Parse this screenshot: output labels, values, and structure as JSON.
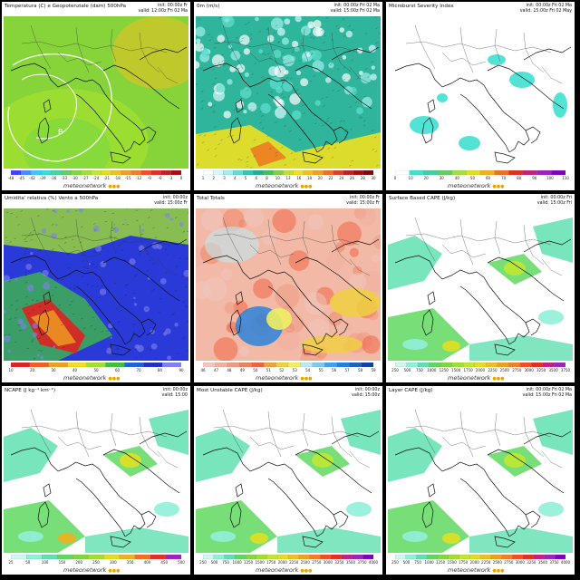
{
  "brand": "meteonetwork",
  "panels": [
    {
      "title": "Temperatura (C) e Geopotenziale (dam) 500hPa",
      "init": "init: 00:00z Fr",
      "valid": "valid: 12:00z Fri 02 Ma",
      "theme": "temp",
      "scale": [
        "-48",
        "-45",
        "-42",
        "-39",
        "-36",
        "-33",
        "-30",
        "-27",
        "-24",
        "-21",
        "-18",
        "-15",
        "-12",
        "-9",
        "-6",
        "-3",
        "0"
      ],
      "colors": [
        "#4040ff",
        "#4a8cff",
        "#38c8ff",
        "#30e0e0",
        "#40d8a0",
        "#60d060",
        "#80d840",
        "#a0e030",
        "#c0e830",
        "#e0e020",
        "#f0c020",
        "#f0a020",
        "#f08020",
        "#f05020",
        "#e03020",
        "#c02020",
        "#a01010"
      ],
      "bg": "#86d43a",
      "marker": "B"
    },
    {
      "title": "0m (m/s)",
      "init": "init: 00:00z Fri 02 Ma",
      "valid": "valid: 15:00z Fri 02 Ma",
      "theme": "wind",
      "scale": [
        "1",
        "2",
        "3",
        "4",
        "5",
        "6",
        "8",
        "10",
        "13",
        "16",
        "18",
        "20",
        "22",
        "24",
        "26",
        "28",
        "30"
      ],
      "colors": [
        "#ffffff",
        "#d8f8ff",
        "#a0f0f0",
        "#60e0d0",
        "#30c8b0",
        "#20b090",
        "#40c060",
        "#80d040",
        "#c0e030",
        "#f0e020",
        "#f0c020",
        "#f0a020",
        "#f07020",
        "#e04020",
        "#c02020",
        "#a01010",
        "#800808"
      ],
      "bg": "#2fb59b"
    },
    {
      "title": "Microburst Severity Index",
      "init": "init: 00:00z Fri 02 Ma",
      "valid": "valid: 15:00z Fri 02 May",
      "theme": "mb",
      "scale": [
        "0",
        "10",
        "20",
        "30",
        "40",
        "50",
        "60",
        "70",
        "80",
        "90",
        "100",
        "110"
      ],
      "colors": [
        "#ffffff",
        "#40e0d0",
        "#40d0a0",
        "#60d060",
        "#a0e040",
        "#e0e020",
        "#f0b020",
        "#f07020",
        "#e03020",
        "#c02080",
        "#a020c0",
        "#8000c0"
      ],
      "bg": "#ffffff"
    },
    {
      "title": "Umidita' relativa (%) Vento a 500hPa",
      "init": "init: 00:00z",
      "valid": "valid: 15:00z Fr",
      "theme": "rh",
      "scale": [
        "10",
        "20",
        "30",
        "40",
        "50",
        "60",
        "70",
        "80",
        "90"
      ],
      "colors": [
        "#e02020",
        "#f06020",
        "#f0a020",
        "#f0e020",
        "#a0e030",
        "#40c040",
        "#2060e0",
        "#2030c0",
        "#8080f0"
      ],
      "bg": "#2a3ad8"
    },
    {
      "title": "Total Totals",
      "init": "init: 00:00z Fr",
      "valid": "valid: 15:00z Fr",
      "theme": "tt",
      "scale": [
        "46",
        "47",
        "48",
        "49",
        "50",
        "51",
        "52",
        "53",
        "54",
        "55",
        "56",
        "57",
        "58",
        "59"
      ],
      "colors": [
        "#f0c8c0",
        "#f0b0a0",
        "#f09880",
        "#f08060",
        "#f06040",
        "#f0a040",
        "#f0d040",
        "#f0f060",
        "#c0e8f0",
        "#80c8f0",
        "#40a0f0",
        "#2080e0",
        "#2060c0",
        "#1040a0"
      ],
      "bg": "#f2b9a6"
    },
    {
      "title": "Surface Based CAPE (J/kg)",
      "init": "init: 00:00z Fri",
      "valid": "valid: 15:00z Fri",
      "theme": "cape",
      "scale": [
        "250",
        "500",
        "750",
        "1000",
        "1250",
        "1500",
        "1750",
        "2000",
        "2250",
        "2500",
        "2750",
        "3000",
        "3250",
        "3500",
        "3750"
      ],
      "colors": [
        "#d0f8f0",
        "#90f0d8",
        "#60e0b0",
        "#60d860",
        "#80d840",
        "#a0e030",
        "#c0e830",
        "#e0e020",
        "#f0c020",
        "#f0a020",
        "#f08020",
        "#f05020",
        "#e03020",
        "#c02080",
        "#a020c0"
      ],
      "bg": "#ffffff"
    },
    {
      "title": "NCAPE (J kg⁻¹ km⁻¹)",
      "init": "init: 00:00z",
      "valid": "valid: 15:00",
      "theme": "ncape",
      "scale": [
        "25",
        "50",
        "100",
        "150",
        "200",
        "250",
        "300",
        "350",
        "400",
        "450",
        "500"
      ],
      "colors": [
        "#d0f8f0",
        "#90f0d8",
        "#60e0b0",
        "#60d860",
        "#80d840",
        "#a0e030",
        "#e0e020",
        "#f0b020",
        "#f07020",
        "#e03020",
        "#a020c0"
      ],
      "bg": "#ffffff"
    },
    {
      "title": "Most Unstable CAPE (J/kg)",
      "init": "init: 00:00z",
      "valid": "valid: 15:00z",
      "theme": "mucape",
      "scale": [
        "250",
        "500",
        "750",
        "1000",
        "1250",
        "1500",
        "1750",
        "2000",
        "2250",
        "2500",
        "2750",
        "3000",
        "3250",
        "3500",
        "3750",
        "4000"
      ],
      "colors": [
        "#d0f8f0",
        "#90f0d8",
        "#60e0b0",
        "#60d860",
        "#80d840",
        "#a0e030",
        "#c0e830",
        "#e0e020",
        "#f0c020",
        "#f0a020",
        "#f08020",
        "#f05020",
        "#e03020",
        "#c02080",
        "#a020c0",
        "#8000c0"
      ],
      "bg": "#ffffff"
    },
    {
      "title": "Layer CAPE (J/kg)",
      "init": "init: 00:00z Fri 02 Ma",
      "valid": "valid: 15:00z Fri 02 Ma",
      "theme": "mlcape",
      "scale": [
        "250",
        "500",
        "750",
        "1000",
        "1250",
        "1500",
        "1750",
        "2000",
        "2250",
        "2500",
        "2750",
        "3000",
        "3250",
        "3500",
        "3750",
        "4000"
      ],
      "colors": [
        "#d0f8f0",
        "#90f0d8",
        "#60e0b0",
        "#60d860",
        "#80d840",
        "#a0e030",
        "#c0e830",
        "#e0e020",
        "#f0c020",
        "#f0a020",
        "#f08020",
        "#f05020",
        "#e03020",
        "#c02080",
        "#a020c0",
        "#8000c0"
      ],
      "bg": "#ffffff"
    }
  ]
}
